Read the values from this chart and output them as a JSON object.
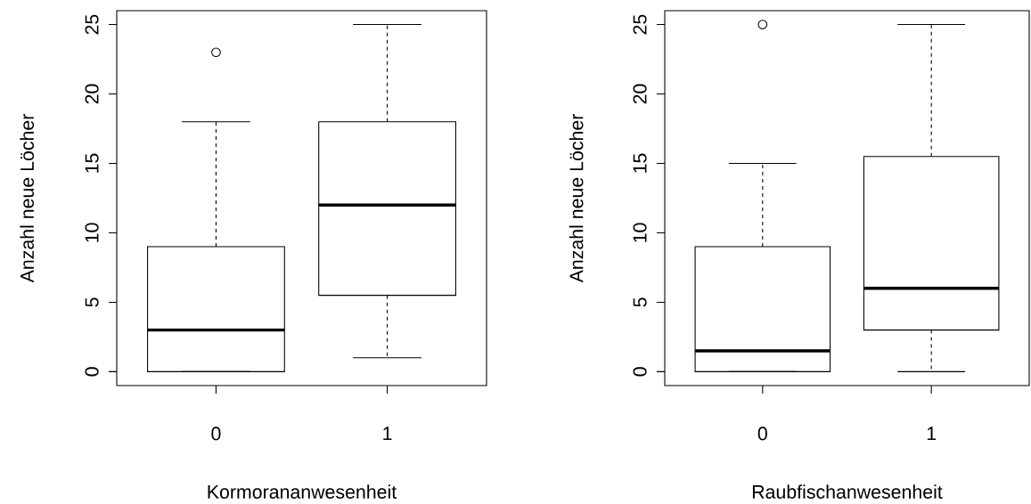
{
  "chart_data": [
    {
      "type": "box",
      "xlabel": "Kormorananwesenheit",
      "ylabel": "Anzahl neue Löcher",
      "categories": [
        "0",
        "1"
      ],
      "boxes": [
        {
          "low": 0,
          "q1": 0,
          "median": 3,
          "q3": 9,
          "high": 18,
          "outliers": [
            23
          ]
        },
        {
          "low": 1,
          "q1": 5.5,
          "median": 12,
          "q3": 18,
          "high": 25
        }
      ],
      "ylim": [
        -1,
        26
      ],
      "yticks": [
        0,
        5,
        10,
        15,
        20,
        25
      ]
    },
    {
      "type": "box",
      "xlabel": "Raubfischanwesenheit",
      "ylabel": "Anzahl neue Löcher",
      "categories": [
        "0",
        "1"
      ],
      "boxes": [
        {
          "low": 0,
          "q1": 0,
          "median": 1.5,
          "q3": 9,
          "high": 15,
          "outliers": [
            25
          ]
        },
        {
          "low": 0,
          "q1": 3,
          "median": 6,
          "q3": 15.5,
          "high": 25
        }
      ],
      "ylim": [
        -1,
        26
      ],
      "yticks": [
        0,
        5,
        10,
        15,
        20,
        25
      ]
    }
  ]
}
